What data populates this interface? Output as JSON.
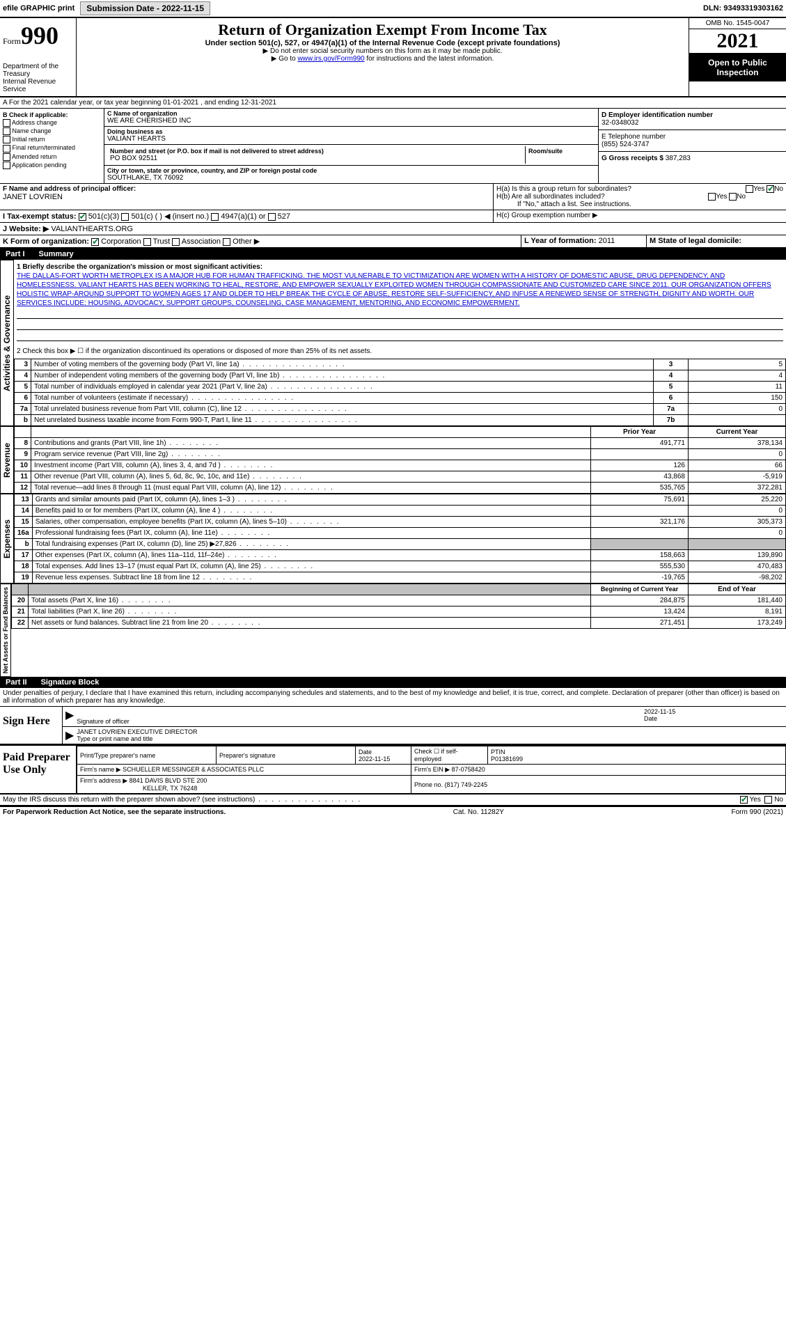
{
  "topbar": {
    "efile": "efile GRAPHIC print",
    "submission_label": "Submission Date - 2022-11-15",
    "dln": "DLN: 93493319303162"
  },
  "header": {
    "form_prefix": "Form",
    "form_number": "990",
    "dept": "Department of the Treasury",
    "irs": "Internal Revenue Service",
    "title": "Return of Organization Exempt From Income Tax",
    "subtitle": "Under section 501(c), 527, or 4947(a)(1) of the Internal Revenue Code (except private foundations)",
    "note1": "▶ Do not enter social security numbers on this form as it may be made public.",
    "note2_pre": "▶ Go to ",
    "note2_link": "www.irs.gov/Form990",
    "note2_post": " for instructions and the latest information.",
    "omb": "OMB No. 1545-0047",
    "year": "2021",
    "open": "Open to Public Inspection"
  },
  "row_a": "A For the 2021 calendar year, or tax year beginning 01-01-2021   , and ending 12-31-2021",
  "section_b": {
    "label": "B Check if applicable:",
    "items": [
      "Address change",
      "Name change",
      "Initial return",
      "Final return/terminated",
      "Amended return",
      "Application pending"
    ]
  },
  "section_c": {
    "name_label": "C Name of organization",
    "name": "WE ARE CHERISHED INC",
    "dba_label": "Doing business as",
    "dba": "VALIANT HEARTS",
    "street_label": "Number and street (or P.O. box if mail is not delivered to street address)",
    "street": "PO BOX 92511",
    "room_label": "Room/suite",
    "city_label": "City or town, state or province, country, and ZIP or foreign postal code",
    "city": "SOUTHLAKE, TX  76092"
  },
  "section_d": {
    "label": "D Employer identification number",
    "value": "32-0348032"
  },
  "section_e": {
    "label": "E Telephone number",
    "value": "(855) 524-3747"
  },
  "section_g": {
    "label": "G Gross receipts $",
    "value": "387,283"
  },
  "section_f": {
    "label": "F  Name and address of principal officer:",
    "value": "JANET LOVRIEN"
  },
  "section_h": {
    "ha": "H(a)  Is this a group return for subordinates?",
    "hb": "H(b)  Are all subordinates included?",
    "hb_note": "If \"No,\" attach a list. See instructions.",
    "hc": "H(c)  Group exemption number ▶"
  },
  "row_i": {
    "label": "I   Tax-exempt status:",
    "c3": "501(c)(3)",
    "c": "501(c) (   ) ◀ (insert no.)",
    "a1": "4947(a)(1) or",
    "s527": "527"
  },
  "row_j": {
    "label": "J   Website: ▶",
    "value": "VALIANTHEARTS.ORG"
  },
  "row_k": {
    "label": "K Form of organization:",
    "corp": "Corporation",
    "trust": "Trust",
    "assoc": "Association",
    "other": "Other ▶"
  },
  "row_l": {
    "label": "L Year of formation:",
    "value": "2011"
  },
  "row_m": {
    "label": "M State of legal domicile:"
  },
  "part1": {
    "title": "Part I",
    "name": "Summary"
  },
  "activities": {
    "side": "Activities & Governance",
    "line1_label": "1   Briefly describe the organization's mission or most significant activities:",
    "mission": "THE DALLAS-FORT WORTH METROPLEX IS A MAJOR HUB FOR HUMAN TRAFFICKING. THE MOST VULNERABLE TO VICTIMIZATION ARE WOMEN WITH A HISTORY OF DOMESTIC ABUSE, DRUG DEPENDENCY, AND HOMELESSNESS. VALIANT HEARTS HAS BEEN WORKING TO HEAL, RESTORE, AND EMPOWER SEXUALLY EXPLOITED WOMEN THROUGH COMPASSIONATE AND CUSTOMIZED CARE SINCE 2011. OUR ORGANIZATION OFFERS HOLISTIC WRAP-AROUND SUPPORT TO WOMEN AGES 17 AND OLDER TO HELP BREAK THE CYCLE OF ABUSE, RESTORE SELF-SUFFICIENCY, AND INFUSE A RENEWED SENSE OF STRENGTH, DIGNITY AND WORTH. OUR SERVICES INCLUDE: HOUSING, ADVOCACY, SUPPORT GROUPS, COUNSELING, CASE MANAGEMENT, MENTORING, AND ECONOMIC EMPOWERMENT.",
    "line2": "2   Check this box ▶ ☐ if the organization discontinued its operations or disposed of more than 25% of its net assets.",
    "lines": [
      {
        "n": "3",
        "t": "Number of voting members of the governing body (Part VI, line 1a)",
        "b": "3",
        "v": "5"
      },
      {
        "n": "4",
        "t": "Number of independent voting members of the governing body (Part VI, line 1b)",
        "b": "4",
        "v": "4"
      },
      {
        "n": "5",
        "t": "Total number of individuals employed in calendar year 2021 (Part V, line 2a)",
        "b": "5",
        "v": "11"
      },
      {
        "n": "6",
        "t": "Total number of volunteers (estimate if necessary)",
        "b": "6",
        "v": "150"
      },
      {
        "n": "7a",
        "t": "Total unrelated business revenue from Part VIII, column (C), line 12",
        "b": "7a",
        "v": "0"
      },
      {
        "n": "b",
        "t": "Net unrelated business taxable income from Form 990-T, Part I, line 11",
        "b": "7b",
        "v": ""
      }
    ]
  },
  "revenue": {
    "side": "Revenue",
    "header_prior": "Prior Year",
    "header_current": "Current Year",
    "lines": [
      {
        "n": "8",
        "t": "Contributions and grants (Part VIII, line 1h)",
        "p": "491,771",
        "c": "378,134"
      },
      {
        "n": "9",
        "t": "Program service revenue (Part VIII, line 2g)",
        "p": "",
        "c": "0"
      },
      {
        "n": "10",
        "t": "Investment income (Part VIII, column (A), lines 3, 4, and 7d )",
        "p": "126",
        "c": "66"
      },
      {
        "n": "11",
        "t": "Other revenue (Part VIII, column (A), lines 5, 6d, 8c, 9c, 10c, and 11e)",
        "p": "43,868",
        "c": "-5,919"
      },
      {
        "n": "12",
        "t": "Total revenue—add lines 8 through 11 (must equal Part VIII, column (A), line 12)",
        "p": "535,765",
        "c": "372,281"
      }
    ]
  },
  "expenses": {
    "side": "Expenses",
    "lines": [
      {
        "n": "13",
        "t": "Grants and similar amounts paid (Part IX, column (A), lines 1–3 )",
        "p": "75,691",
        "c": "25,220"
      },
      {
        "n": "14",
        "t": "Benefits paid to or for members (Part IX, column (A), line 4 )",
        "p": "",
        "c": "0"
      },
      {
        "n": "15",
        "t": "Salaries, other compensation, employee benefits (Part IX, column (A), lines 5–10)",
        "p": "321,176",
        "c": "305,373"
      },
      {
        "n": "16a",
        "t": "Professional fundraising fees (Part IX, column (A), line 11e)",
        "p": "",
        "c": "0"
      },
      {
        "n": "b",
        "t": "Total fundraising expenses (Part IX, column (D), line 25) ▶27,826",
        "p": "GRAY",
        "c": "GRAY"
      },
      {
        "n": "17",
        "t": "Other expenses (Part IX, column (A), lines 11a–11d, 11f–24e)",
        "p": "158,663",
        "c": "139,890"
      },
      {
        "n": "18",
        "t": "Total expenses. Add lines 13–17 (must equal Part IX, column (A), line 25)",
        "p": "555,530",
        "c": "470,483"
      },
      {
        "n": "19",
        "t": "Revenue less expenses. Subtract line 18 from line 12",
        "p": "-19,765",
        "c": "-98,202"
      }
    ]
  },
  "netassets": {
    "side": "Net Assets or Fund Balances",
    "header_begin": "Beginning of Current Year",
    "header_end": "End of Year",
    "lines": [
      {
        "n": "20",
        "t": "Total assets (Part X, line 16)",
        "p": "284,875",
        "c": "181,440"
      },
      {
        "n": "21",
        "t": "Total liabilities (Part X, line 26)",
        "p": "13,424",
        "c": "8,191"
      },
      {
        "n": "22",
        "t": "Net assets or fund balances. Subtract line 21 from line 20",
        "p": "271,451",
        "c": "173,249"
      }
    ]
  },
  "part2": {
    "title": "Part II",
    "name": "Signature Block"
  },
  "sig": {
    "penalty": "Under penalties of perjury, I declare that I have examined this return, including accompanying schedules and statements, and to the best of my knowledge and belief, it is true, correct, and complete. Declaration of preparer (other than officer) is based on all information of which preparer has any knowledge.",
    "sign_here": "Sign Here",
    "sig_officer": "Signature of officer",
    "date_label": "Date",
    "date": "2022-11-15",
    "name_title": "JANET LOVRIEN  EXECUTIVE DIRECTOR",
    "type_print": "Type or print name and title"
  },
  "paid": {
    "label": "Paid Preparer Use Only",
    "print_name": "Print/Type preparer's name",
    "prep_sig": "Preparer's signature",
    "date_label": "Date",
    "date": "2022-11-15",
    "check_label": "Check ☐ if self-employed",
    "ptin_label": "PTIN",
    "ptin": "P01381699",
    "firm_name_label": "Firm's name    ▶",
    "firm_name": "SCHUELLER MESSINGER & ASSOCIATES PLLC",
    "firm_ein_label": "Firm's EIN ▶",
    "firm_ein": "87-0758420",
    "firm_addr_label": "Firm's address ▶",
    "firm_addr1": "8841 DAVIS BLVD STE 200",
    "firm_addr2": "KELLER, TX  76248",
    "phone_label": "Phone no.",
    "phone": "(817) 749-2245"
  },
  "discuss": "May the IRS discuss this return with the preparer shown above? (see instructions)",
  "footer": {
    "pra": "For Paperwork Reduction Act Notice, see the separate instructions.",
    "cat": "Cat. No. 11282Y",
    "form": "Form 990 (2021)"
  },
  "yes": "Yes",
  "no": "No"
}
